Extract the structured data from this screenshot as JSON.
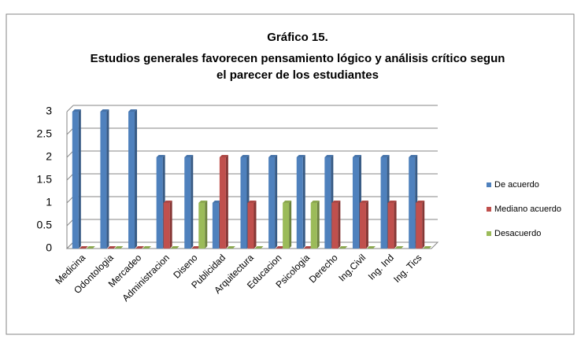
{
  "chart_data": {
    "type": "bar",
    "title": "Gráfico 15.",
    "subtitle": [
      "Estudios generales favorecen pensamiento lógico y análisis crítico segun",
      "el parecer de los estudiantes"
    ],
    "categories": [
      "Medicina",
      "Odontologia",
      "Mercadeo",
      "Administracion",
      "Diseno",
      "Publicidad",
      "Arquitectura",
      "Educacion",
      "Psicologia",
      "Derecho",
      "Ing.Civil",
      "Ing. Ind",
      "Ing. Tics"
    ],
    "series": [
      {
        "name": "De acuerdo",
        "color": "#4f81bd",
        "values": [
          3,
          3,
          3,
          2,
          2,
          1,
          2,
          2,
          2,
          2,
          2,
          2,
          2
        ]
      },
      {
        "name": "Mediano acuerdo",
        "color": "#c0504d",
        "values": [
          0,
          0,
          0,
          1,
          0,
          2,
          1,
          0,
          0,
          1,
          1,
          1,
          1
        ]
      },
      {
        "name": "Desacuerdo",
        "color": "#9bbb59",
        "values": [
          0,
          0,
          0,
          0,
          1,
          0,
          0,
          1,
          1,
          0,
          0,
          0,
          0
        ]
      }
    ],
    "ylim": [
      0,
      3
    ],
    "yticks": [
      0,
      0.5,
      1,
      1.5,
      2,
      2.5,
      3
    ],
    "grid": true,
    "legend": "right"
  }
}
